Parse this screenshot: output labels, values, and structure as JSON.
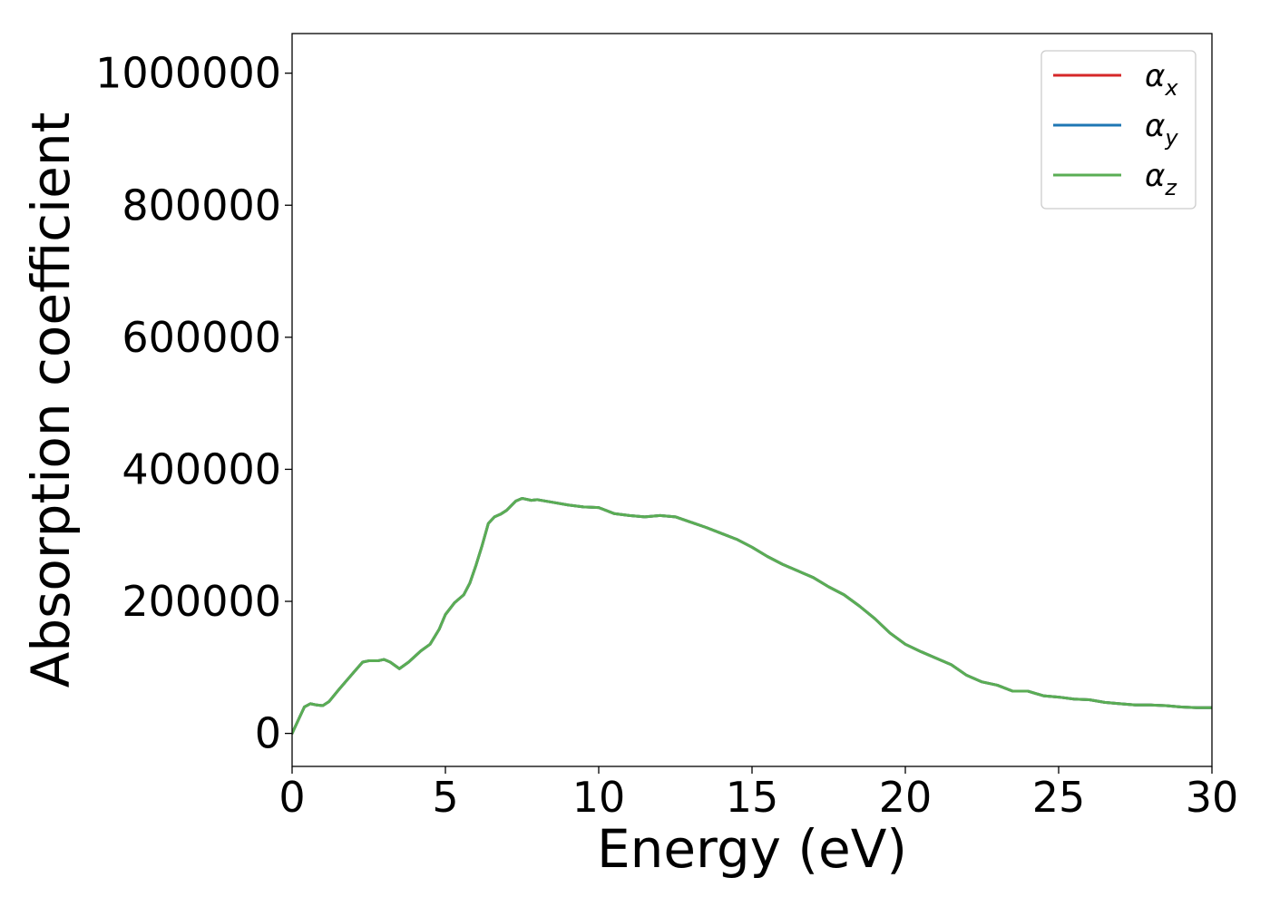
{
  "chart_data": {
    "type": "line",
    "xlabel": "Energy (eV)",
    "ylabel": "Absorption coefficient",
    "xlim": [
      0,
      30
    ],
    "ylim": [
      -50000,
      1060000
    ],
    "xticks": [
      0,
      5,
      10,
      15,
      20,
      25,
      30
    ],
    "xtick_labels": [
      "0",
      "5",
      "10",
      "15",
      "20",
      "25",
      "30"
    ],
    "yticks": [
      0,
      200000,
      400000,
      600000,
      800000,
      1000000
    ],
    "ytick_labels": [
      "0",
      "200000",
      "400000",
      "600000",
      "800000",
      "1000000"
    ],
    "grid": false,
    "legend_position": "top-right",
    "x": [
      0,
      0.2,
      0.4,
      0.6,
      0.8,
      1.0,
      1.2,
      1.5,
      2.0,
      2.3,
      2.5,
      2.8,
      3.0,
      3.2,
      3.5,
      3.8,
      4.2,
      4.5,
      4.8,
      5.0,
      5.3,
      5.6,
      5.8,
      6.0,
      6.2,
      6.4,
      6.6,
      6.8,
      7.0,
      7.3,
      7.5,
      7.8,
      8.0,
      8.5,
      9.0,
      9.5,
      10.0,
      10.5,
      11.0,
      11.5,
      12.0,
      12.5,
      13.0,
      13.5,
      14.0,
      14.5,
      15.0,
      15.5,
      16.0,
      16.5,
      17.0,
      17.5,
      18.0,
      18.5,
      19.0,
      19.5,
      20.0,
      20.5,
      21.0,
      21.5,
      22.0,
      22.5,
      23.0,
      23.5,
      24.0,
      24.5,
      25.0,
      25.5,
      26.0,
      26.5,
      27.0,
      27.5,
      28.0,
      28.5,
      29.0,
      29.5,
      30.0
    ],
    "series": [
      {
        "name": "α_x",
        "label_base": "α",
        "label_sub": "x",
        "color": "#d62728",
        "values": [
          0,
          20000,
          40000,
          45000,
          43000,
          42000,
          48000,
          65000,
          92000,
          108000,
          110000,
          110000,
          112000,
          108000,
          98000,
          108000,
          125000,
          135000,
          158000,
          180000,
          198000,
          210000,
          228000,
          255000,
          285000,
          318000,
          328000,
          332000,
          338000,
          352000,
          356000,
          353000,
          354000,
          350000,
          346000,
          343000,
          342000,
          333000,
          330000,
          328000,
          330000,
          328000,
          320000,
          312000,
          303000,
          294000,
          282000,
          268000,
          256000,
          246000,
          236000,
          222000,
          210000,
          193000,
          174000,
          152000,
          135000,
          124000,
          114000,
          104000,
          88000,
          78000,
          73000,
          64000,
          64000,
          57000,
          55000,
          52000,
          51000,
          47000,
          45000,
          43000,
          43000,
          42000,
          40000,
          39000,
          39000
        ]
      },
      {
        "name": "α_y",
        "label_base": "α",
        "label_sub": "y",
        "color": "#1f77b4",
        "values": [
          0,
          20000,
          40000,
          45000,
          43000,
          42000,
          48000,
          65000,
          92000,
          108000,
          110000,
          110000,
          112000,
          108000,
          98000,
          108000,
          125000,
          135000,
          158000,
          180000,
          198000,
          210000,
          228000,
          255000,
          285000,
          318000,
          328000,
          332000,
          338000,
          352000,
          356000,
          353000,
          354000,
          350000,
          346000,
          343000,
          342000,
          333000,
          330000,
          328000,
          330000,
          328000,
          320000,
          312000,
          303000,
          294000,
          282000,
          268000,
          256000,
          246000,
          236000,
          222000,
          210000,
          193000,
          174000,
          152000,
          135000,
          124000,
          114000,
          104000,
          88000,
          78000,
          73000,
          64000,
          64000,
          57000,
          55000,
          52000,
          51000,
          47000,
          45000,
          43000,
          43000,
          42000,
          40000,
          39000,
          39000
        ]
      },
      {
        "name": "α_z",
        "label_base": "α",
        "label_sub": "z",
        "color": "#5aad54",
        "values": [
          0,
          20000,
          40000,
          45000,
          43000,
          42000,
          48000,
          65000,
          92000,
          108000,
          110000,
          110000,
          112000,
          108000,
          98000,
          108000,
          125000,
          135000,
          158000,
          180000,
          198000,
          210000,
          228000,
          255000,
          285000,
          318000,
          328000,
          332000,
          338000,
          352000,
          356000,
          353000,
          354000,
          350000,
          346000,
          343000,
          342000,
          333000,
          330000,
          328000,
          330000,
          328000,
          320000,
          312000,
          303000,
          294000,
          282000,
          268000,
          256000,
          246000,
          236000,
          222000,
          210000,
          193000,
          174000,
          152000,
          135000,
          124000,
          114000,
          104000,
          88000,
          78000,
          73000,
          64000,
          64000,
          57000,
          55000,
          52000,
          51000,
          47000,
          45000,
          43000,
          43000,
          42000,
          40000,
          39000,
          39000
        ]
      }
    ]
  }
}
